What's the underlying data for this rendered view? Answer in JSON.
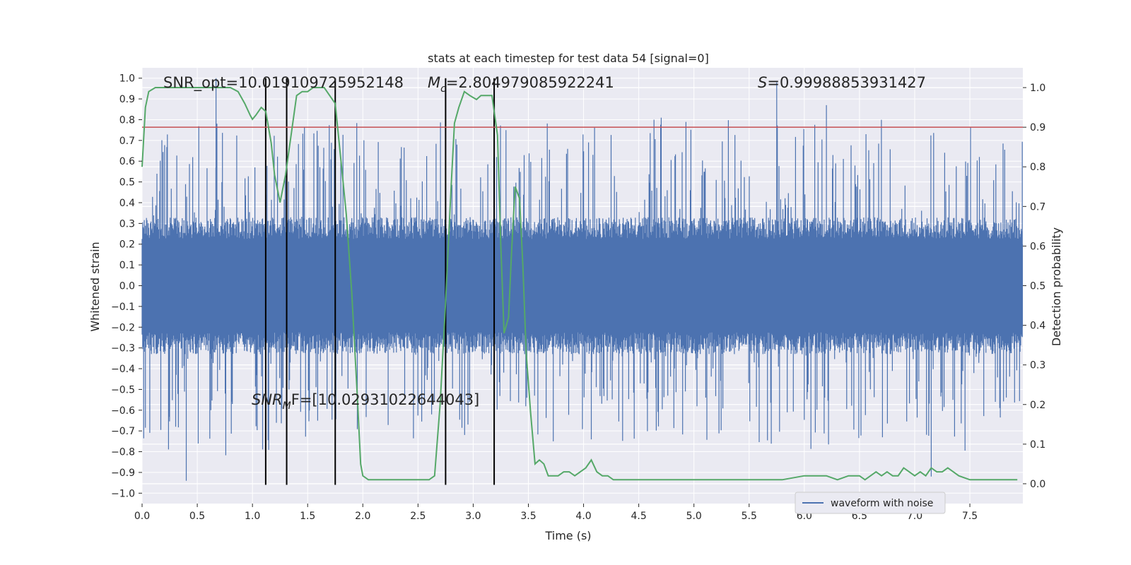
{
  "chart_data": {
    "type": "line",
    "title": "stats at each timestep for test data 54 [signal=0]",
    "xlabel": "Time (s)",
    "ylabel": "Whitened strain",
    "y2label": "Detection probability",
    "xlim": [
      0.0,
      7.98
    ],
    "ylim": [
      -1.05,
      1.05
    ],
    "y2lim": [
      -0.05,
      1.05
    ],
    "x_ticks": [
      0.0,
      0.5,
      1.0,
      1.5,
      2.0,
      2.5,
      3.0,
      3.5,
      4.0,
      4.5,
      5.0,
      5.5,
      6.0,
      6.5,
      7.0,
      7.5
    ],
    "x_tick_labels": [
      "0.0",
      "0.5",
      "1.0",
      "1.5",
      "2.0",
      "2.5",
      "3.0",
      "3.5",
      "4.0",
      "4.5",
      "5.0",
      "5.5",
      "6.0",
      "6.5",
      "7.0",
      "7.5"
    ],
    "y_ticks": [
      1.0,
      0.9,
      0.8,
      0.7,
      0.6,
      0.5,
      0.4,
      0.3,
      0.2,
      0.1,
      0.0,
      -0.1,
      -0.2,
      -0.3,
      -0.4,
      -0.5,
      -0.6,
      -0.7,
      -0.8,
      -0.9,
      -1.0
    ],
    "y_tick_labels": [
      "1.0",
      "0.9",
      "0.8",
      "0.7",
      "0.6",
      "0.5",
      "0.4",
      "0.3",
      "0.2",
      "0.1",
      "0.0",
      "−0.1",
      "−0.2",
      "−0.3",
      "−0.4",
      "−0.5",
      "−0.6",
      "−0.7",
      "−0.8",
      "−0.9",
      "−1.0"
    ],
    "y2_ticks": [
      1.0,
      0.9,
      0.8,
      0.7,
      0.6,
      0.5,
      0.4,
      0.3,
      0.2,
      0.1,
      0.0
    ],
    "y2_tick_labels": [
      "1.0",
      "0.9",
      "0.8",
      "0.7",
      "0.6",
      "0.5",
      "0.4",
      "0.3",
      "0.2",
      "0.1",
      "0.0"
    ],
    "grid": true,
    "legend": {
      "position": "bottom-right",
      "entries": [
        "waveform with noise"
      ]
    },
    "annotations": {
      "snr_opt": "SNR_opt=10.019109725952148",
      "mc_symbol": "M",
      "mc_sub": "c",
      "mc_value": "=2.804979085922241",
      "s_symbol": "S",
      "s_value": "=0.99988853931427",
      "snr_mf_symbol": "SNR",
      "snr_mf_sub": "M",
      "snr_mf_value": "F=[10.02931022644043]"
    },
    "colors": {
      "waveform": "#4c72b0",
      "probability": "#55a868",
      "threshold": "#c44e52",
      "markers": "#000000",
      "background": "#eaeaf2",
      "grid": "#ffffff"
    },
    "threshold": 0.9,
    "vertical_markers": [
      1.12,
      1.31,
      1.75,
      2.75,
      3.19
    ],
    "waveform": {
      "description_values": "approximate noise envelope",
      "sample_count": 1600,
      "typical_amplitude": 0.3,
      "max_spikes": [
        [
          0.4,
          -0.94
        ],
        [
          0.67,
          1.0
        ],
        [
          1.75,
          0.85
        ],
        [
          3.19,
          -0.86
        ],
        [
          5.75,
          0.98
        ],
        [
          6.2,
          0.87
        ],
        [
          7.15,
          -0.92
        ]
      ]
    },
    "probability_series": {
      "x": [
        0.0,
        0.03,
        0.06,
        0.12,
        0.2,
        0.3,
        0.4,
        0.5,
        0.6,
        0.7,
        0.8,
        0.87,
        0.93,
        0.98,
        1.0,
        1.03,
        1.08,
        1.12,
        1.17,
        1.2,
        1.25,
        1.3,
        1.35,
        1.4,
        1.45,
        1.5,
        1.55,
        1.6,
        1.65,
        1.7,
        1.75,
        1.8,
        1.85,
        1.9,
        1.95,
        1.98,
        2.0,
        2.05,
        2.1,
        2.2,
        2.3,
        2.4,
        2.5,
        2.6,
        2.65,
        2.7,
        2.75,
        2.8,
        2.83,
        2.87,
        2.92,
        2.97,
        3.03,
        3.07,
        3.12,
        3.17,
        3.19,
        3.22,
        3.25,
        3.28,
        3.32,
        3.35,
        3.38,
        3.42,
        3.45,
        3.48,
        3.52,
        3.56,
        3.6,
        3.64,
        3.68,
        3.72,
        3.77,
        3.82,
        3.87,
        3.92,
        3.97,
        4.02,
        4.07,
        4.12,
        4.17,
        4.22,
        4.27,
        4.32,
        4.37,
        4.42,
        4.47,
        4.6,
        4.8,
        5.0,
        5.1,
        5.2,
        5.4,
        5.6,
        5.8,
        6.0,
        6.1,
        6.2,
        6.3,
        6.4,
        6.5,
        6.55,
        6.6,
        6.65,
        6.7,
        6.75,
        6.8,
        6.85,
        6.9,
        6.95,
        7.0,
        7.05,
        7.1,
        7.15,
        7.2,
        7.25,
        7.3,
        7.35,
        7.4,
        7.5,
        7.6,
        7.7,
        7.8,
        7.93
      ],
      "y": [
        0.8,
        0.95,
        0.99,
        1.0,
        1.0,
        1.0,
        1.0,
        1.0,
        1.0,
        1.0,
        1.0,
        0.99,
        0.96,
        0.93,
        0.92,
        0.93,
        0.95,
        0.94,
        0.86,
        0.78,
        0.71,
        0.78,
        0.88,
        0.98,
        0.99,
        0.99,
        1.0,
        1.0,
        1.0,
        0.98,
        0.96,
        0.82,
        0.68,
        0.48,
        0.22,
        0.05,
        0.02,
        0.01,
        0.01,
        0.01,
        0.01,
        0.01,
        0.01,
        0.01,
        0.02,
        0.2,
        0.46,
        0.75,
        0.91,
        0.95,
        0.99,
        0.98,
        0.97,
        0.98,
        0.98,
        0.98,
        0.94,
        0.88,
        0.6,
        0.38,
        0.42,
        0.6,
        0.75,
        0.72,
        0.55,
        0.33,
        0.18,
        0.05,
        0.06,
        0.05,
        0.02,
        0.02,
        0.02,
        0.03,
        0.03,
        0.02,
        0.03,
        0.04,
        0.06,
        0.03,
        0.02,
        0.02,
        0.01,
        0.01,
        0.01,
        0.01,
        0.01,
        0.01,
        0.01,
        0.01,
        0.01,
        0.01,
        0.01,
        0.01,
        0.01,
        0.02,
        0.02,
        0.02,
        0.01,
        0.02,
        0.02,
        0.01,
        0.02,
        0.03,
        0.02,
        0.03,
        0.02,
        0.02,
        0.04,
        0.03,
        0.02,
        0.03,
        0.02,
        0.04,
        0.03,
        0.03,
        0.04,
        0.03,
        0.02,
        0.01,
        0.01,
        0.01,
        0.01,
        0.01
      ]
    }
  }
}
